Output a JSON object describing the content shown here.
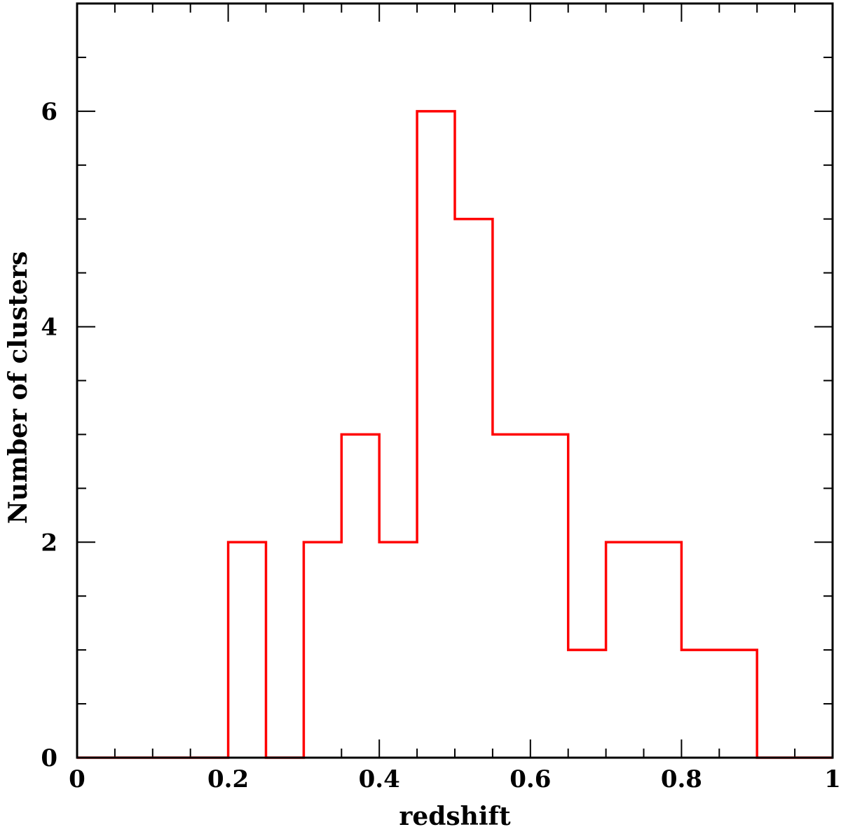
{
  "chart_data": {
    "type": "bar",
    "style": "step-histogram",
    "xlabel": "redshift",
    "ylabel": "Number of clusters",
    "xlim": [
      0,
      1
    ],
    "ylim": [
      0,
      7
    ],
    "bin_width": 0.05,
    "bin_edges": [
      0,
      0.05,
      0.1,
      0.15,
      0.2,
      0.25,
      0.3,
      0.35,
      0.4,
      0.45,
      0.5,
      0.55,
      0.6,
      0.65,
      0.7,
      0.75,
      0.8,
      0.85,
      0.9,
      0.95,
      1.0
    ],
    "values": [
      0,
      0,
      0,
      0,
      2,
      0,
      2,
      3,
      2,
      6,
      5,
      3,
      3,
      1,
      2,
      2,
      1,
      1,
      0,
      0
    ],
    "x_ticks_major": [
      0,
      0.2,
      0.4,
      0.6,
      0.8,
      1
    ],
    "x_tick_labels": [
      "0",
      "0.2",
      "0.4",
      "0.6",
      "0.8",
      "1"
    ],
    "x_ticks_minor_step": 0.05,
    "y_ticks_major": [
      0,
      2,
      4,
      6
    ],
    "y_tick_labels": [
      "0",
      "2",
      "4",
      "6"
    ],
    "y_ticks_minor_step": 0.5,
    "line_color": "#ff0000",
    "grid": false
  }
}
